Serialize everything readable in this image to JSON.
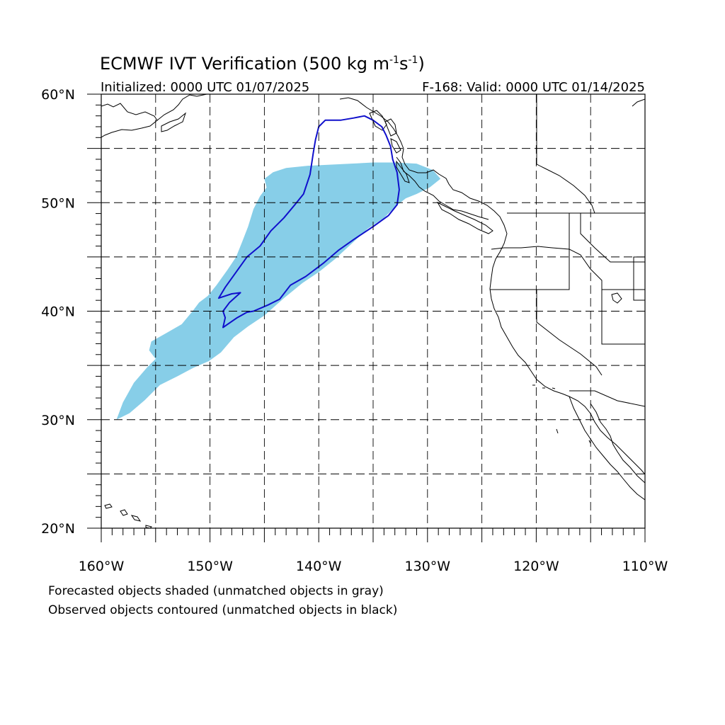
{
  "title": {
    "main": "ECMWF IVT Verification (500 kg m",
    "sup1": "-1",
    "mid": "s",
    "sup2": "-1",
    "end": ")"
  },
  "subtitle": {
    "left": "Initialized: 0000 UTC 01/07/2025",
    "right": "F-168: Valid: 0000 UTC 01/14/2025"
  },
  "axes": {
    "lat_range": [
      20,
      60
    ],
    "lon_range": [
      -160,
      -110
    ],
    "lat_ticks": [
      {
        "value": 60,
        "label": "60°N"
      },
      {
        "value": 50,
        "label": "50°N"
      },
      {
        "value": 40,
        "label": "40°N"
      },
      {
        "value": 30,
        "label": "30°N"
      },
      {
        "value": 20,
        "label": "20°N"
      }
    ],
    "lon_ticks": [
      {
        "value": -160,
        "label": "160°W"
      },
      {
        "value": -150,
        "label": "150°W"
      },
      {
        "value": -140,
        "label": "140°W"
      },
      {
        "value": -130,
        "label": "130°W"
      },
      {
        "value": -120,
        "label": "120°W"
      },
      {
        "value": -110,
        "label": "110°W"
      }
    ],
    "grid_interval_deg": 5,
    "grid_style": "dashed"
  },
  "colors": {
    "forecast_fill": "#87CEE8",
    "observed_contour": "#1010CC",
    "coastline": "#000000"
  },
  "forecast_object": [
    [
      -158.6,
      30.0
    ],
    [
      -157.4,
      30.6
    ],
    [
      -156.0,
      31.8
    ],
    [
      -154.6,
      33.2
    ],
    [
      -153.0,
      34.0
    ],
    [
      -151.5,
      34.8
    ],
    [
      -150.1,
      35.4
    ],
    [
      -149.0,
      36.2
    ],
    [
      -147.8,
      37.6
    ],
    [
      -146.5,
      38.6
    ],
    [
      -145.0,
      39.6
    ],
    [
      -143.2,
      41.2
    ],
    [
      -141.5,
      42.6
    ],
    [
      -140.0,
      43.6
    ],
    [
      -138.5,
      44.8
    ],
    [
      -137.0,
      46.2
    ],
    [
      -135.5,
      47.6
    ],
    [
      -134.0,
      48.6
    ],
    [
      -133.0,
      49.6
    ],
    [
      -132.0,
      50.4
    ],
    [
      -131.0,
      50.8
    ],
    [
      -129.8,
      51.4
    ],
    [
      -128.8,
      52.2
    ],
    [
      -129.5,
      53.0
    ],
    [
      -131.0,
      53.6
    ],
    [
      -133.0,
      53.7
    ],
    [
      -135.0,
      53.7
    ],
    [
      -137.0,
      53.6
    ],
    [
      -139.0,
      53.5
    ],
    [
      -141.0,
      53.4
    ],
    [
      -143.0,
      53.2
    ],
    [
      -144.2,
      52.8
    ],
    [
      -145.0,
      52.2
    ],
    [
      -144.8,
      51.4
    ],
    [
      -145.4,
      50.6
    ],
    [
      -146.0,
      49.4
    ],
    [
      -146.5,
      47.8
    ],
    [
      -147.0,
      46.5
    ],
    [
      -147.6,
      45.0
    ],
    [
      -148.4,
      43.8
    ],
    [
      -149.4,
      42.4
    ],
    [
      -150.2,
      41.4
    ],
    [
      -151.0,
      40.8
    ],
    [
      -151.6,
      40.0
    ],
    [
      -152.6,
      38.8
    ],
    [
      -154.0,
      38.0
    ],
    [
      -155.4,
      37.2
    ],
    [
      -155.6,
      36.4
    ],
    [
      -155.0,
      35.6
    ],
    [
      -155.8,
      34.8
    ],
    [
      -157.0,
      33.4
    ],
    [
      -158.0,
      31.6
    ]
  ],
  "observed_object": [
    [
      -148.8,
      38.5
    ],
    [
      -147.5,
      39.4
    ],
    [
      -146.6,
      39.9
    ],
    [
      -146.0,
      40.0
    ],
    [
      -145.3,
      40.3
    ],
    [
      -144.6,
      40.6
    ],
    [
      -143.6,
      41.1
    ],
    [
      -142.6,
      42.4
    ],
    [
      -141.2,
      43.2
    ],
    [
      -139.6,
      44.4
    ],
    [
      -138.2,
      45.6
    ],
    [
      -136.8,
      46.6
    ],
    [
      -135.0,
      47.8
    ],
    [
      -133.6,
      48.8
    ],
    [
      -132.8,
      49.8
    ],
    [
      -132.6,
      51.2
    ],
    [
      -132.8,
      52.8
    ],
    [
      -133.2,
      54.0
    ],
    [
      -133.4,
      55.2
    ],
    [
      -133.8,
      56.2
    ],
    [
      -134.2,
      57.0
    ],
    [
      -135.0,
      57.6
    ],
    [
      -135.8,
      58.0
    ],
    [
      -136.8,
      57.8
    ],
    [
      -138.0,
      57.6
    ],
    [
      -139.4,
      57.6
    ],
    [
      -140.0,
      57.0
    ],
    [
      -140.3,
      55.8
    ],
    [
      -140.5,
      54.6
    ],
    [
      -140.8,
      52.6
    ],
    [
      -141.4,
      50.8
    ],
    [
      -142.2,
      49.8
    ],
    [
      -143.2,
      48.6
    ],
    [
      -144.4,
      47.4
    ],
    [
      -145.4,
      46.0
    ],
    [
      -146.6,
      45.0
    ],
    [
      -147.6,
      43.6
    ],
    [
      -148.6,
      42.2
    ],
    [
      -149.2,
      41.2
    ],
    [
      -148.0,
      41.6
    ],
    [
      -147.2,
      41.7
    ],
    [
      -148.2,
      40.8
    ],
    [
      -148.8,
      40.0
    ],
    [
      -148.6,
      39.4
    ]
  ],
  "caption": {
    "line1": "Forecasted objects shaded (unmatched objects in gray)",
    "line2": "Observed objects contoured (unmatched objects in black)"
  }
}
